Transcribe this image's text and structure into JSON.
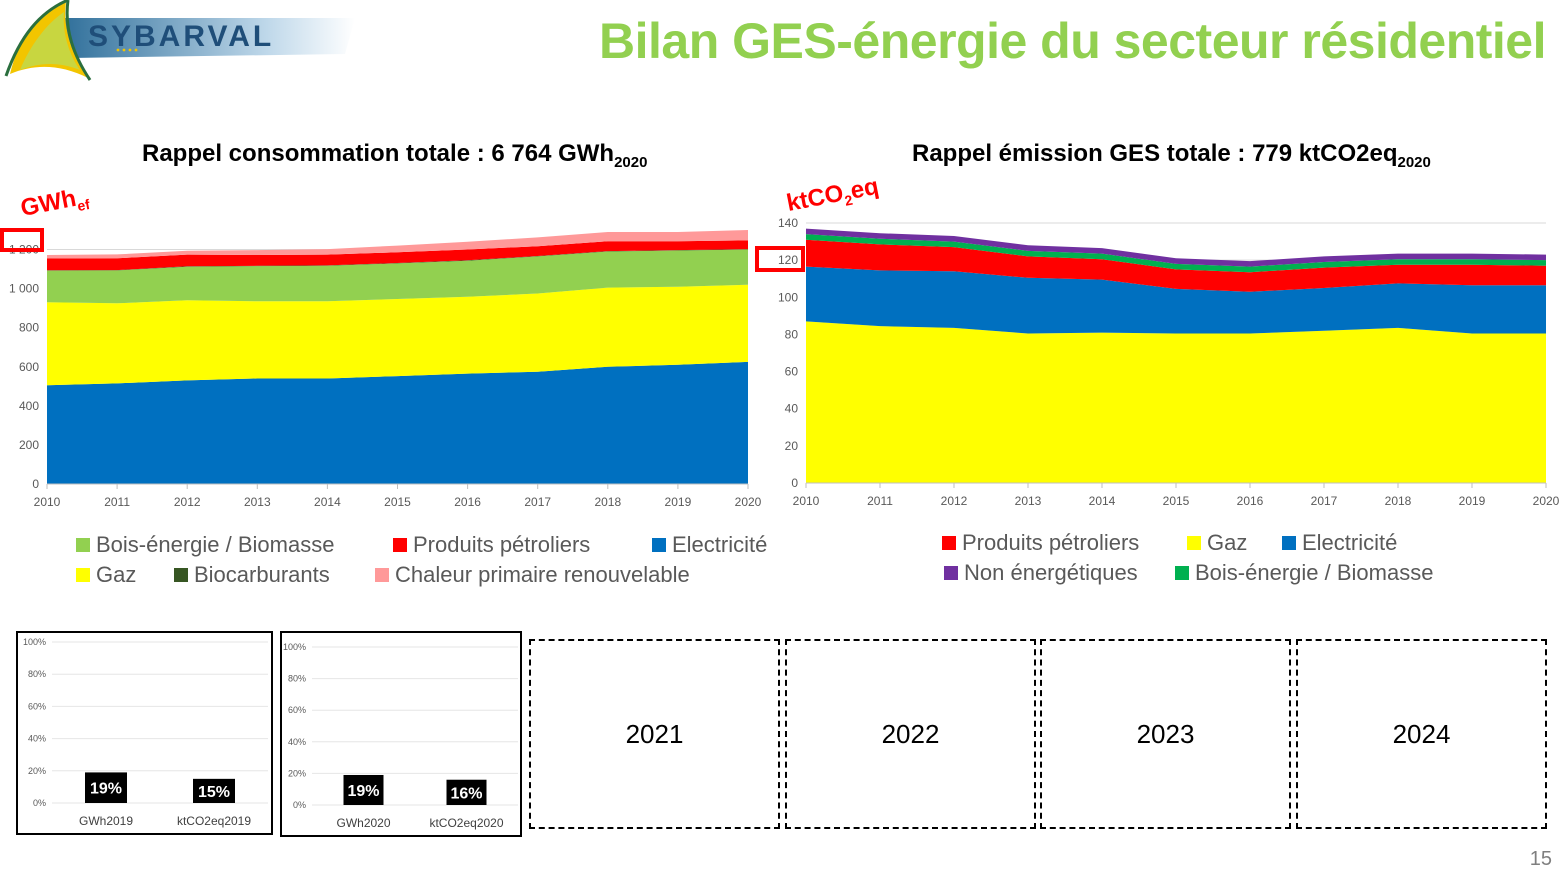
{
  "logo": {
    "text": "SYBARVAL"
  },
  "page_title": "Bilan GES-énergie du secteur résidentiel",
  "page_number": "15",
  "colors": {
    "title_green": "#92d050",
    "bois": "#92d050",
    "petrole": "#ff0000",
    "electricite": "#0070c0",
    "gaz": "#ffff00",
    "biocarburants": "#375623",
    "chaleur": "#ff9999",
    "non_energetique": "#7030a0",
    "bois_ges": "#00b050",
    "highlight": "#ff0000"
  },
  "chart_data": [
    {
      "type": "area",
      "stacked": true,
      "title": "Rappel consommation totale : 6 764 GWh",
      "title_sub": "2020",
      "unit_label": "GWh",
      "unit_sub": "ef",
      "highlight_tick": "1 200",
      "x": [
        "2010",
        "2011",
        "2012",
        "2013",
        "2014",
        "2015",
        "2016",
        "2017",
        "2018",
        "2019",
        "2020"
      ],
      "ylim": [
        0,
        1300
      ],
      "yticks": [
        0,
        200,
        400,
        600,
        800,
        1000,
        1200
      ],
      "ytick_labels": [
        "0",
        "200",
        "400",
        "600",
        "800",
        "1 000",
        "1 200"
      ],
      "grid": true,
      "series": [
        {
          "name": "Electricité",
          "color": "#0070c0",
          "values": [
            505,
            515,
            530,
            540,
            540,
            552,
            565,
            575,
            600,
            610,
            625
          ]
        },
        {
          "name": "Gaz",
          "color": "#ffff00",
          "values": [
            425,
            410,
            410,
            395,
            395,
            395,
            393,
            400,
            405,
            400,
            395
          ]
        },
        {
          "name": "Bois-énergie / Biomasse",
          "color": "#92d050",
          "values": [
            162,
            168,
            172,
            180,
            182,
            182,
            185,
            190,
            185,
            185,
            180
          ]
        },
        {
          "name": "Biocarburants",
          "color": "#375623",
          "values": [
            2,
            2,
            2,
            2,
            2,
            2,
            2,
            2,
            2,
            2,
            2
          ]
        },
        {
          "name": "Produits pétroliers",
          "color": "#ff0000",
          "values": [
            60,
            60,
            60,
            55,
            55,
            55,
            55,
            50,
            50,
            45,
            45
          ]
        },
        {
          "name": "Chaleur primaire renouvelable",
          "color": "#ff9999",
          "values": [
            18,
            20,
            20,
            25,
            28,
            34,
            40,
            45,
            48,
            48,
            53
          ]
        }
      ],
      "legend": [
        {
          "label": "Bois-énergie / Biomasse",
          "color": "#92d050"
        },
        {
          "label": "Produits pétroliers",
          "color": "#ff0000"
        },
        {
          "label": "Electricité",
          "color": "#0070c0"
        },
        {
          "label": "Gaz",
          "color": "#ffff00"
        },
        {
          "label": "Biocarburants",
          "color": "#375623"
        },
        {
          "label": "Chaleur primaire renouvelable",
          "color": "#ff9999"
        }
      ]
    },
    {
      "type": "area",
      "stacked": true,
      "title": "Rappel émission GES totale : 779 ktCO2eq",
      "title_sub": "2020",
      "unit_label": "ktCO",
      "unit_sub": "2",
      "unit_suffix": "eq",
      "highlight_tick": "120",
      "x": [
        "2010",
        "2011",
        "2012",
        "2013",
        "2014",
        "2015",
        "2016",
        "2017",
        "2018",
        "2019",
        "2020"
      ],
      "ylim": [
        0,
        140
      ],
      "yticks": [
        0,
        20,
        40,
        60,
        80,
        100,
        120,
        140
      ],
      "ytick_labels": [
        "0",
        "20",
        "40",
        "60",
        "80",
        "100",
        "120",
        "140"
      ],
      "grid": true,
      "series": [
        {
          "name": "Gaz",
          "color": "#ffff00",
          "values": [
            87,
            84.5,
            83.5,
            80.5,
            81,
            80.5,
            80.5,
            82,
            83.5,
            80.5,
            80.5
          ]
        },
        {
          "name": "Electricité",
          "color": "#0070c0",
          "values": [
            29.5,
            30,
            30.5,
            30,
            28.5,
            24,
            22.5,
            23,
            24,
            26,
            26
          ]
        },
        {
          "name": "Produits pétroliers",
          "color": "#ff0000",
          "values": [
            14.5,
            14,
            13,
            11.5,
            11,
            10.5,
            10.5,
            11,
            10,
            11,
            10.5
          ]
        },
        {
          "name": "Bois-énergie / Biomasse",
          "color": "#00b050",
          "values": [
            3,
            3,
            3,
            3,
            3,
            3,
            3,
            3,
            3,
            3,
            3
          ]
        },
        {
          "name": "Non énergétiques",
          "color": "#7030a0",
          "values": [
            3,
            3,
            3,
            3,
            3,
            3,
            3,
            3,
            3,
            3,
            3
          ]
        }
      ],
      "legend": [
        {
          "label": "Produits pétroliers",
          "color": "#ff0000"
        },
        {
          "label": "Gaz",
          "color": "#ffff00"
        },
        {
          "label": "Electricité",
          "color": "#0070c0"
        },
        {
          "label": "Non énergétiques",
          "color": "#7030a0"
        },
        {
          "label": "Bois-énergie / Biomasse",
          "color": "#00b050"
        }
      ]
    },
    {
      "type": "bar",
      "categories": [
        "GWh2019",
        "ktCO2eq2019"
      ],
      "values": [
        19,
        15
      ],
      "data_labels": [
        "19%",
        "15%"
      ],
      "ylim": [
        0,
        100
      ],
      "ytick_labels": [
        "0%",
        "20%",
        "40%",
        "60%",
        "80%",
        "100%"
      ],
      "grid": true
    },
    {
      "type": "bar",
      "categories": [
        "GWh2020",
        "ktCO2eq2020"
      ],
      "values": [
        19,
        16
      ],
      "data_labels": [
        "19%",
        "16%"
      ],
      "ylim": [
        0,
        100
      ],
      "ytick_labels": [
        "0%",
        "20%",
        "40%",
        "60%",
        "80%",
        "100%"
      ],
      "grid": true
    }
  ],
  "year_boxes": [
    "2021",
    "2022",
    "2023",
    "2024"
  ]
}
